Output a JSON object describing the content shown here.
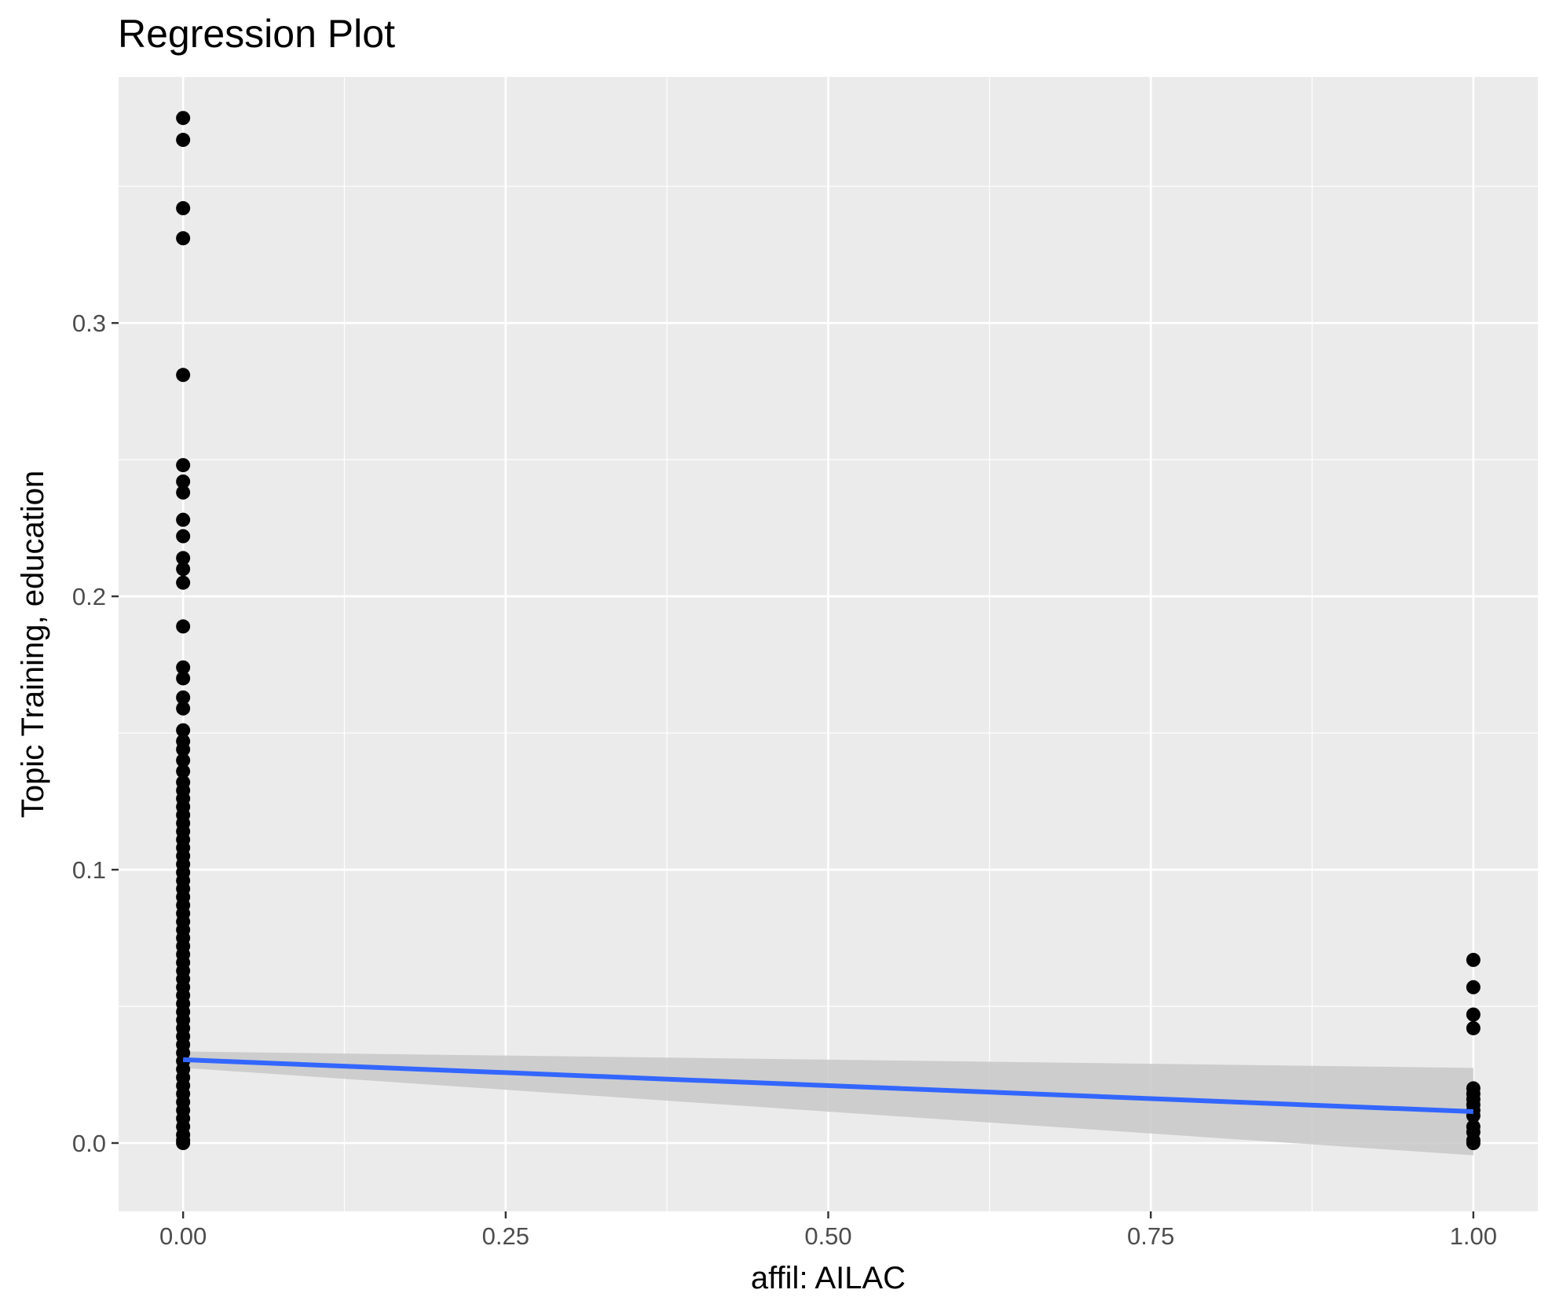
{
  "chart_data": {
    "type": "scatter",
    "title": "Regression Plot",
    "xlabel": "affil: AILAC",
    "ylabel": "Topic Training, education",
    "xlim": [
      -0.05,
      1.05
    ],
    "ylim": [
      -0.025,
      0.39
    ],
    "x_ticks": [
      0.0,
      0.25,
      0.5,
      0.75,
      1.0
    ],
    "x_tick_labels": [
      "0.00",
      "0.25",
      "0.50",
      "0.75",
      "1.00"
    ],
    "y_ticks": [
      0.0,
      0.1,
      0.2,
      0.3
    ],
    "y_tick_labels": [
      "0.0",
      "0.1",
      "0.2",
      "0.3"
    ],
    "grid": true,
    "legend": "none",
    "colors": {
      "panel": "#ebebeb",
      "grid": "#ffffff",
      "points": "#000000",
      "line": "#3366ff",
      "ribbon": "#c8c8c8"
    },
    "points": {
      "x0": [
        0.375,
        0.367,
        0.342,
        0.331,
        0.281,
        0.248,
        0.242,
        0.238,
        0.228,
        0.222,
        0.214,
        0.21,
        0.205,
        0.189,
        0.174,
        0.17,
        0.163,
        0.159,
        0.151,
        0.147,
        0.144,
        0.14,
        0.136,
        0.132,
        0.129,
        0.126,
        0.123,
        0.12,
        0.117,
        0.114,
        0.111,
        0.108,
        0.105,
        0.102,
        0.099,
        0.096,
        0.093,
        0.09,
        0.087,
        0.084,
        0.081,
        0.078,
        0.075,
        0.072,
        0.069,
        0.066,
        0.063,
        0.06,
        0.057,
        0.054,
        0.051,
        0.048,
        0.045,
        0.042,
        0.039,
        0.036,
        0.033,
        0.03,
        0.027,
        0.024,
        0.021,
        0.018,
        0.015,
        0.012,
        0.009,
        0.006,
        0.003,
        0.001,
        0.0
      ],
      "x1": [
        0.067,
        0.057,
        0.047,
        0.042,
        0.02,
        0.018,
        0.016,
        0.014,
        0.012,
        0.01,
        0.006,
        0.004,
        0.001,
        0.0
      ]
    },
    "regression": {
      "x": [
        0.0,
        1.0
      ],
      "y": [
        0.0305,
        0.0115
      ],
      "ci_lower": [
        0.0275,
        -0.0045
      ],
      "ci_upper": [
        0.0335,
        0.0275
      ]
    }
  }
}
